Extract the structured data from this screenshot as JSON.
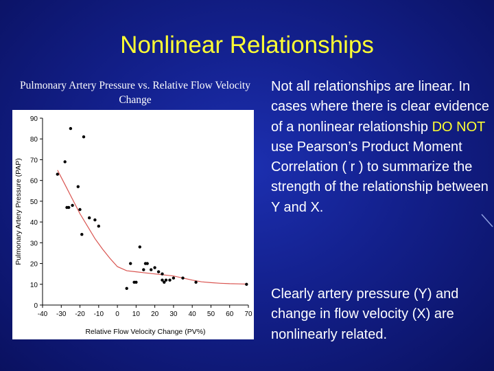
{
  "slide": {
    "title": "Nonlinear Relationships",
    "chart_caption": "Pulmonary Artery Pressure vs. Relative Flow Velocity Change",
    "para1": {
      "before": "Not all relationships are linear. In cases where there is clear evidence of a nonlinear relationship ",
      "highlight": "DO NOT",
      "after": " use Pearson’s Product Moment Correlation ( r ) to summarize the strength of the relationship between Y and X."
    },
    "para2": "Clearly artery pressure (Y) and change in flow velocity (X) are nonlinearly related."
  },
  "colors": {
    "title": "#ffff33",
    "highlight": "#ffff33",
    "text": "#ffffff",
    "curve": "#d9534f",
    "points": "#000000"
  },
  "chart_data": {
    "type": "scatter",
    "title": "Pulmonary Artery Pressure vs. Relative Flow Velocity Change",
    "xlabel": "Relative Flow Velocity Change (PV%)",
    "ylabel": "Pulmonary Artery Pressure (PAP)",
    "xlim": [
      -40,
      70
    ],
    "ylim": [
      0,
      90
    ],
    "xticks": [
      -40,
      -30,
      -20,
      -10,
      0,
      10,
      20,
      30,
      40,
      50,
      60,
      70
    ],
    "yticks": [
      0,
      10,
      20,
      30,
      40,
      50,
      60,
      70,
      80,
      90
    ],
    "grid": false,
    "series": [
      {
        "kind": "points",
        "x": [
          -32,
          -28,
          -27,
          -26,
          -25,
          -24,
          -21,
          -20,
          -19,
          -18,
          -15,
          -12,
          -10,
          5,
          7,
          9,
          10,
          12,
          14,
          15,
          16,
          18,
          20,
          22,
          24,
          24,
          25,
          26,
          28,
          30,
          35,
          42,
          69
        ],
        "y": [
          63,
          69,
          47,
          47,
          85,
          48,
          57,
          46,
          34,
          81,
          42,
          41,
          38,
          8,
          20,
          11,
          11,
          28,
          17,
          20,
          20,
          17,
          18,
          16,
          15,
          12,
          11,
          12,
          12,
          13,
          13,
          11,
          10
        ]
      },
      {
        "kind": "curve",
        "x": [
          -32,
          -28,
          -24,
          -20,
          -16,
          -12,
          -8,
          -4,
          0,
          5,
          10,
          15,
          20,
          25,
          30,
          35,
          40,
          45,
          50,
          55,
          60,
          65,
          69
        ],
        "y": [
          65,
          58,
          51,
          44,
          38,
          32,
          27,
          22.5,
          18.5,
          16.5,
          16,
          15.5,
          15,
          14.5,
          14,
          13,
          12,
          11.2,
          10.8,
          10.5,
          10.3,
          10.2,
          10.1
        ]
      }
    ]
  }
}
